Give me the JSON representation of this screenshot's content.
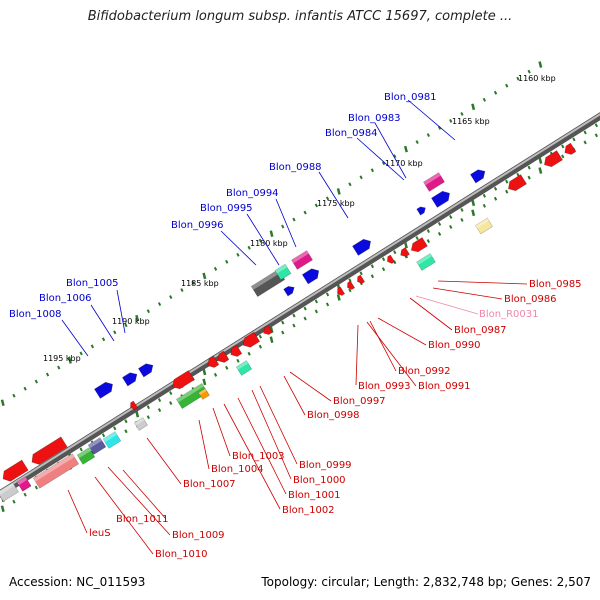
{
  "title": "Bifidobacterium longum subsp. infantis ATCC 15697, complete ...",
  "footer": {
    "accession": "Accession: NC_011593",
    "topology": "Topology: circular; Length: 2,832,748 bp; Genes: 2,507"
  },
  "colors": {
    "forward_label": "#0000cc",
    "reverse_label": "#cc0000",
    "rna_label": "#ee88aa",
    "backbone": "#888888",
    "tick": "#2a7a2a"
  },
  "kbp_ticks": [
    "1160 kbp",
    "1165 kbp",
    "1170 kbp",
    "1175 kbp",
    "1180 kbp",
    "1185 kbp",
    "1190 kbp",
    "1195 kbp"
  ],
  "forward_genes": [
    "Blon_0981",
    "Blon_0983",
    "Blon_0984",
    "Blon_0988",
    "Blon_0994",
    "Blon_0995",
    "Blon_0996",
    "Blon_1005",
    "Blon_1006",
    "Blon_1008"
  ],
  "reverse_genes": [
    "Blon_0985",
    "Blon_0986",
    "Blon_R0031",
    "Blon_0987",
    "Blon_0990",
    "Blon_0992",
    "Blon_0993",
    "Blon_0991",
    "Blon_0997",
    "Blon_0998",
    "Blon_0999",
    "Blon_1000",
    "Blon_1001",
    "Blon_1002",
    "Blon_1003",
    "Blon_1004",
    "Blon_1007",
    "Blon_1011",
    "Blon_1009",
    "Blon_1010",
    "leuS"
  ]
}
